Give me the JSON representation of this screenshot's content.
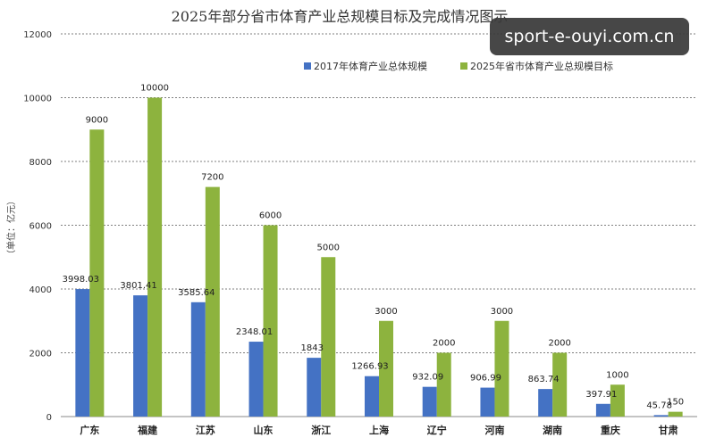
{
  "chart_data": {
    "type": "bar",
    "title": "2025年部分省市体育产业总规模目标及完成情况图示",
    "ylabel": "（单位：亿元）",
    "xlabel": "",
    "ylim": [
      0,
      12000
    ],
    "yticks": [
      "0",
      "2000",
      "4000",
      "6000",
      "8000",
      "10000",
      "12000"
    ],
    "grid": true,
    "legend_position": "top",
    "categories": [
      "广东",
      "福建",
      "江苏",
      "山东",
      "浙江",
      "上海",
      "辽宁",
      "河南",
      "湖南",
      "重庆",
      "甘肃"
    ],
    "series": [
      {
        "name": "2017年体育产业总体规模",
        "color": "#4472C4",
        "values": [
          3998.03,
          3801.41,
          3585.64,
          2348.01,
          1843,
          1266.93,
          932.09,
          906.99,
          863.74,
          397.91,
          45.78
        ],
        "labels": [
          "3998.03",
          "3801.41",
          "3585.64",
          "2348.01",
          "1843",
          "1266.93",
          "932.09",
          "906.99",
          "863.74",
          "397.91",
          "45.78"
        ]
      },
      {
        "name": "2025年省市体育产业总规模目标",
        "color": "#8DB33E",
        "values": [
          9000,
          10000,
          7200,
          6000,
          5000,
          3000,
          2000,
          3000,
          2000,
          1000,
          150
        ],
        "labels": [
          "9000",
          "10000",
          "7200",
          "6000",
          "5000",
          "3000",
          "2000",
          "3000",
          "2000",
          "1000",
          "150"
        ]
      }
    ]
  },
  "watermark": "sport-e-ouyi.com.cn"
}
